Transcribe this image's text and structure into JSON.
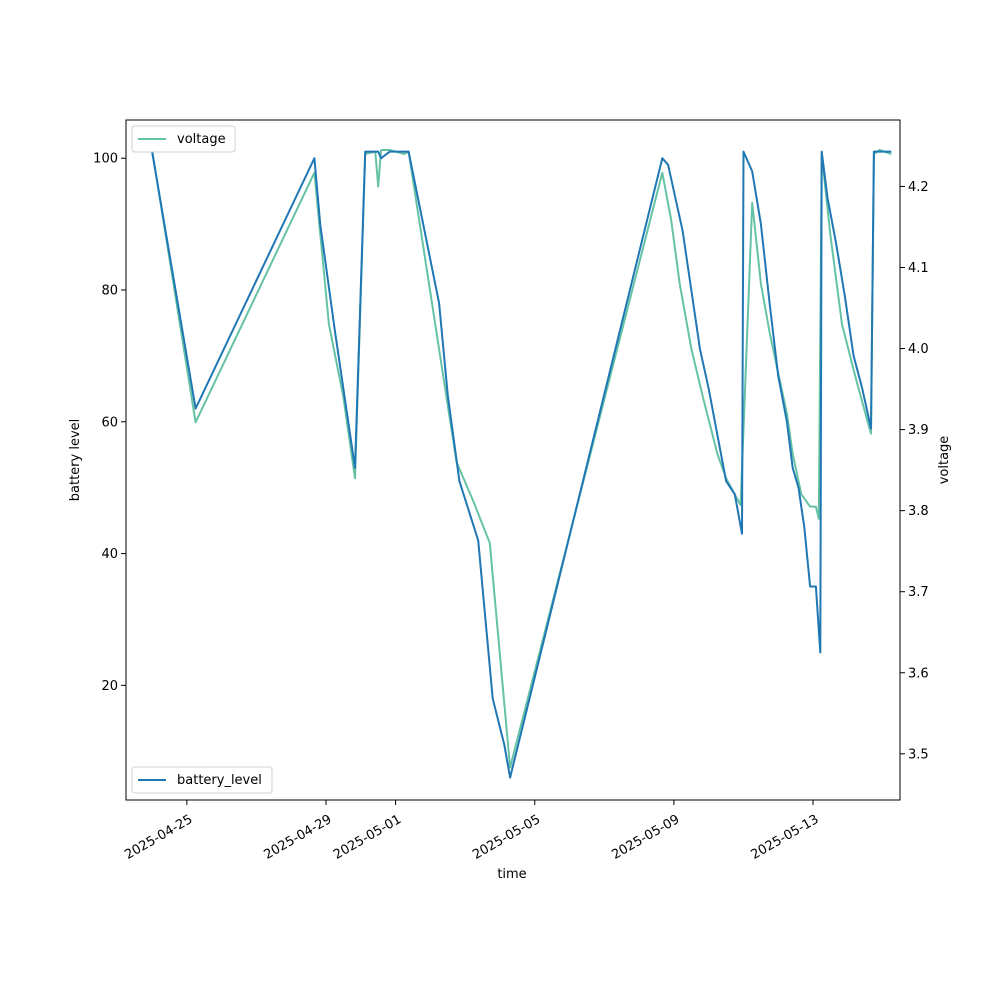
{
  "chart_data": {
    "type": "line",
    "xlabel": "time",
    "ylabel_left": "battery level",
    "ylabel_right": "voltage",
    "xlim": [
      "2025-04-23T06:00",
      "2025-05-15T12:00"
    ],
    "ylim_left": [
      2.6,
      105.8
    ],
    "ylim_right": [
      3.443,
      4.282
    ],
    "x_ticks": [
      "2025-04-25",
      "2025-04-29",
      "2025-05-01",
      "2025-05-05",
      "2025-05-09",
      "2025-05-13"
    ],
    "y_ticks_left": [
      20,
      40,
      60,
      80,
      100
    ],
    "y_ticks_right": [
      3.5,
      3.6,
      3.7,
      3.8,
      3.9,
      4.0,
      4.1,
      4.2
    ],
    "legend_left_position": "lower-left",
    "legend_right_position": "upper-left",
    "series": [
      {
        "name": "battery_level",
        "axis": "left",
        "color": "#1f77b4",
        "points": [
          [
            "2025-04-24T00:00",
            101
          ],
          [
            "2025-04-25T06:00",
            62
          ],
          [
            "2025-04-28T16:00",
            100
          ],
          [
            "2025-04-28T20:00",
            90
          ],
          [
            "2025-04-29T06:00",
            74
          ],
          [
            "2025-04-29T20:00",
            53
          ],
          [
            "2025-04-30T03:00",
            101
          ],
          [
            "2025-04-30T12:00",
            101
          ],
          [
            "2025-04-30T14:00",
            100
          ],
          [
            "2025-04-30T20:00",
            101
          ],
          [
            "2025-05-01T09:00",
            101
          ],
          [
            "2025-05-02T06:00",
            78
          ],
          [
            "2025-05-02T12:00",
            64
          ],
          [
            "2025-05-02T20:00",
            51
          ],
          [
            "2025-05-03T09:00",
            42
          ],
          [
            "2025-05-03T19:00",
            18
          ],
          [
            "2025-05-04T03:00",
            11
          ],
          [
            "2025-05-04T07:00",
            6
          ],
          [
            "2025-05-08T16:00",
            100
          ],
          [
            "2025-05-08T20:00",
            99
          ],
          [
            "2025-05-09T00:00",
            95
          ],
          [
            "2025-05-09T06:00",
            89
          ],
          [
            "2025-05-09T12:00",
            80
          ],
          [
            "2025-05-09T18:00",
            71
          ],
          [
            "2025-05-10T00:00",
            65
          ],
          [
            "2025-05-10T12:00",
            51
          ],
          [
            "2025-05-10T18:00",
            49
          ],
          [
            "2025-05-10T23:00",
            43
          ],
          [
            "2025-05-11T00:00",
            101
          ],
          [
            "2025-05-11T06:00",
            98
          ],
          [
            "2025-05-11T12:00",
            90
          ],
          [
            "2025-05-11T18:00",
            78
          ],
          [
            "2025-05-12T00:00",
            67
          ],
          [
            "2025-05-12T06:00",
            60
          ],
          [
            "2025-05-12T10:00",
            53
          ],
          [
            "2025-05-12T14:00",
            50
          ],
          [
            "2025-05-12T18:00",
            44
          ],
          [
            "2025-05-12T22:00",
            35
          ],
          [
            "2025-05-13T02:00",
            35
          ],
          [
            "2025-05-13T05:00",
            25
          ],
          [
            "2025-05-13T06:00",
            101
          ],
          [
            "2025-05-13T10:00",
            94
          ],
          [
            "2025-05-13T16:00",
            87
          ],
          [
            "2025-05-13T22:00",
            79
          ],
          [
            "2025-05-14T04:00",
            70
          ],
          [
            "2025-05-14T10:00",
            65
          ],
          [
            "2025-05-14T16:00",
            59
          ],
          [
            "2025-05-14T18:00",
            101
          ],
          [
            "2025-05-14T22:00",
            101
          ],
          [
            "2025-05-15T06:00",
            101
          ]
        ]
      },
      {
        "name": "voltage",
        "axis": "right",
        "color": "#66c2a5",
        "points": [
          [
            "2025-04-24T00:00",
            4.245
          ],
          [
            "2025-04-25T06:00",
            3.909
          ],
          [
            "2025-04-28T16:00",
            4.217
          ],
          [
            "2025-04-29T02:00",
            4.03
          ],
          [
            "2025-04-29T12:00",
            3.94
          ],
          [
            "2025-04-29T20:00",
            3.84
          ],
          [
            "2025-04-30T03:00",
            4.24
          ],
          [
            "2025-04-30T10:00",
            4.243
          ],
          [
            "2025-04-30T12:00",
            4.2
          ],
          [
            "2025-04-30T14:00",
            4.245
          ],
          [
            "2025-04-30T20:00",
            4.245
          ],
          [
            "2025-05-01T06:00",
            4.24
          ],
          [
            "2025-05-01T09:00",
            4.243
          ],
          [
            "2025-05-02T18:00",
            3.86
          ],
          [
            "2025-05-03T06:00",
            3.81
          ],
          [
            "2025-05-03T17:00",
            3.76
          ],
          [
            "2025-05-04T07:00",
            3.483
          ],
          [
            "2025-05-08T16:00",
            4.217
          ],
          [
            "2025-05-08T22:00",
            4.16
          ],
          [
            "2025-05-09T04:00",
            4.08
          ],
          [
            "2025-05-09T12:00",
            4.0
          ],
          [
            "2025-05-09T20:00",
            3.94
          ],
          [
            "2025-05-10T06:00",
            3.87
          ],
          [
            "2025-05-10T12:00",
            3.84
          ],
          [
            "2025-05-10T18:00",
            3.82
          ],
          [
            "2025-05-10T22:00",
            3.807
          ],
          [
            "2025-05-11T06:00",
            4.18
          ],
          [
            "2025-05-11T12:00",
            4.08
          ],
          [
            "2025-05-11T18:00",
            4.02
          ],
          [
            "2025-05-12T00:00",
            3.97
          ],
          [
            "2025-05-12T06:00",
            3.92
          ],
          [
            "2025-05-12T10:00",
            3.87
          ],
          [
            "2025-05-12T16:00",
            3.82
          ],
          [
            "2025-05-12T22:00",
            3.805
          ],
          [
            "2025-05-13T02:00",
            3.805
          ],
          [
            "2025-05-13T04:00",
            3.79
          ],
          [
            "2025-05-13T06:00",
            4.24
          ],
          [
            "2025-05-13T12:00",
            4.14
          ],
          [
            "2025-05-13T20:00",
            4.03
          ],
          [
            "2025-05-14T06:00",
            3.96
          ],
          [
            "2025-05-14T16:00",
            3.895
          ],
          [
            "2025-05-14T18:00",
            4.24
          ],
          [
            "2025-05-14T22:00",
            4.245
          ],
          [
            "2025-05-15T06:00",
            4.24
          ]
        ]
      }
    ]
  }
}
